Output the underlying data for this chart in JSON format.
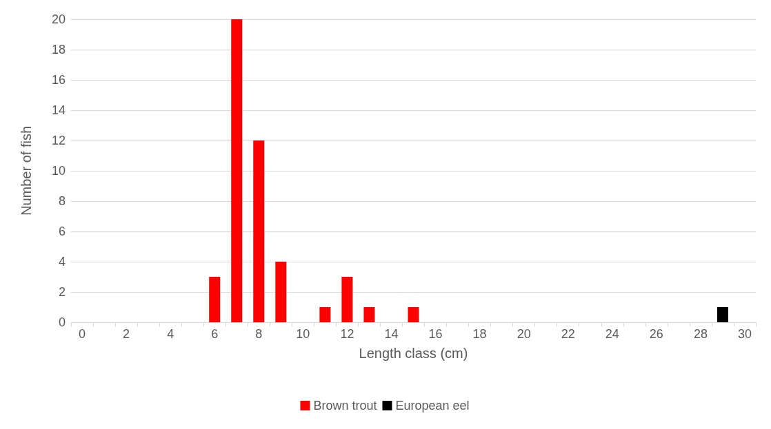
{
  "chart_data": {
    "type": "bar",
    "xlabel": "Length class (cm)",
    "ylabel": "Number of fish",
    "categories": [
      "0",
      null,
      "2",
      null,
      "4",
      null,
      "6",
      null,
      "8",
      null,
      "10",
      null,
      "12",
      null,
      "14",
      null,
      "16",
      null,
      "18",
      null,
      "20",
      null,
      "22",
      null,
      "24",
      null,
      "26",
      null,
      "28",
      null,
      "30"
    ],
    "series": [
      {
        "name": "Brown trout",
        "color": "#ff0000",
        "values": [
          0,
          0,
          0,
          0,
          0,
          0,
          3,
          20,
          12,
          4,
          0,
          1,
          3,
          1,
          0,
          1,
          0,
          0,
          0,
          0,
          0,
          0,
          0,
          0,
          0,
          0,
          0,
          0,
          0,
          0,
          0
        ]
      },
      {
        "name": "European eel",
        "color": "#000000",
        "values": [
          0,
          0,
          0,
          0,
          0,
          0,
          0,
          0,
          0,
          0,
          0,
          0,
          0,
          0,
          0,
          0,
          0,
          0,
          0,
          0,
          0,
          0,
          0,
          0,
          0,
          0,
          0,
          0,
          0,
          1,
          0
        ]
      }
    ],
    "ylim": [
      0,
      20
    ],
    "yticks": [
      0,
      2,
      4,
      6,
      8,
      10,
      12,
      14,
      16,
      18,
      20
    ],
    "grid": "y",
    "legend": "bottom"
  }
}
